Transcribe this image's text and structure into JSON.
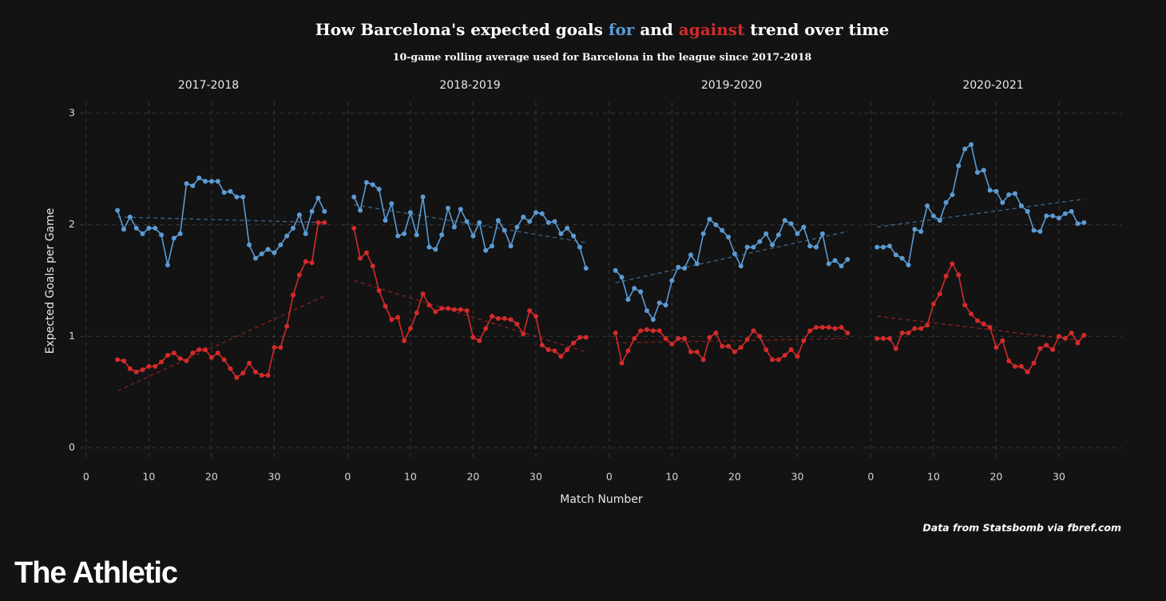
{
  "title_parts": [
    "How Barcelona's expected goals",
    "and",
    "trend over time"
  ],
  "series_names": [
    "for",
    "against"
  ],
  "subtitle": "10-game rolling average used for Barcelona in the league since 2017-2018",
  "ylabel": "Expected Goals per Game",
  "xlabel": "Match Number",
  "source": "Data from Statsbomb via fbref.com",
  "brand": "The Athletic",
  "chart_data": [
    {
      "type": "line",
      "title": "2017-2018",
      "xlim": [
        -1,
        40
      ],
      "ylim": [
        -0.1,
        3.1
      ],
      "xticks": [
        0,
        10,
        20,
        30
      ],
      "yticks": [
        0,
        1,
        2,
        3
      ],
      "grid": true,
      "x": [
        5,
        6,
        7,
        8,
        9,
        10,
        11,
        12,
        13,
        14,
        15,
        16,
        17,
        18,
        19,
        20,
        21,
        22,
        23,
        24,
        25,
        26,
        27,
        28,
        29,
        30,
        31,
        32,
        33,
        34,
        35,
        36,
        37,
        38
      ],
      "series": [
        {
          "color": "#5b9bd5",
          "values": [
            2.13,
            1.96,
            2.07,
            1.97,
            1.92,
            1.97,
            1.97,
            1.91,
            1.64,
            1.88,
            1.92,
            2.37,
            2.35,
            2.42,
            2.39,
            2.39,
            2.39,
            2.29,
            2.3,
            2.25,
            2.25,
            1.82,
            1.7,
            1.74,
            1.78,
            1.75,
            1.82,
            1.9,
            1.97,
            2.09,
            1.92,
            2.12,
            2.24,
            2.12
          ],
          "trend": {
            "x": [
              5,
              38
            ],
            "values": [
              2.07,
              2.02
            ]
          }
        },
        {
          "color": "#d42a2a",
          "values": [
            0.79,
            0.78,
            0.71,
            0.68,
            0.7,
            0.73,
            0.73,
            0.77,
            0.83,
            0.85,
            0.8,
            0.78,
            0.85,
            0.88,
            0.88,
            0.81,
            0.85,
            0.79,
            0.71,
            0.63,
            0.67,
            0.76,
            0.68,
            0.65,
            0.65,
            0.9,
            0.9,
            1.09,
            1.37,
            1.55,
            1.67,
            1.66,
            2.02,
            2.02
          ],
          "trend": {
            "x": [
              5,
              38
            ],
            "values": [
              0.51,
              1.36
            ]
          }
        }
      ]
    },
    {
      "type": "line",
      "title": "2018-2019",
      "xlim": [
        -1,
        40
      ],
      "ylim": [
        -0.1,
        3.1
      ],
      "xticks": [
        0,
        10,
        20,
        30
      ],
      "yticks": [
        0,
        1,
        2,
        3
      ],
      "grid": true,
      "x": [
        1,
        2,
        3,
        4,
        5,
        6,
        7,
        8,
        9,
        10,
        11,
        12,
        13,
        14,
        15,
        16,
        17,
        18,
        19,
        20,
        21,
        22,
        23,
        24,
        25,
        26,
        27,
        28,
        29,
        30,
        31,
        32,
        33,
        34,
        35,
        36,
        37,
        38
      ],
      "series": [
        {
          "color": "#5b9bd5",
          "values": [
            2.25,
            2.13,
            2.38,
            2.36,
            2.32,
            2.04,
            2.19,
            1.9,
            1.92,
            2.11,
            1.91,
            2.25,
            1.8,
            1.78,
            1.91,
            2.15,
            1.98,
            2.14,
            2.03,
            1.9,
            2.02,
            1.77,
            1.81,
            2.04,
            1.95,
            1.81,
            1.98,
            2.07,
            2.03,
            2.11,
            2.1,
            2.02,
            2.03,
            1.92,
            1.97,
            1.9,
            1.8,
            1.61
          ],
          "trend": {
            "x": [
              1,
              38
            ],
            "values": [
              2.18,
              1.84
            ]
          }
        },
        {
          "color": "#d42a2a",
          "values": [
            1.97,
            1.7,
            1.75,
            1.63,
            1.41,
            1.27,
            1.15,
            1.17,
            0.96,
            1.07,
            1.21,
            1.38,
            1.28,
            1.22,
            1.25,
            1.25,
            1.24,
            1.24,
            1.23,
            0.99,
            0.96,
            1.07,
            1.18,
            1.16,
            1.16,
            1.15,
            1.11,
            1.02,
            1.23,
            1.18,
            0.92,
            0.88,
            0.87,
            0.82,
            0.88,
            0.94,
            0.99,
            0.99
          ],
          "trend": {
            "x": [
              1,
              38
            ],
            "values": [
              1.5,
              0.86
            ]
          }
        }
      ]
    },
    {
      "type": "line",
      "title": "2019-2020",
      "xlim": [
        -1,
        40
      ],
      "ylim": [
        -0.1,
        3.1
      ],
      "xticks": [
        0,
        10,
        20,
        30
      ],
      "yticks": [
        0,
        1,
        2,
        3
      ],
      "grid": true,
      "x": [
        1,
        2,
        3,
        4,
        5,
        6,
        7,
        8,
        9,
        10,
        11,
        12,
        13,
        14,
        15,
        16,
        17,
        18,
        19,
        20,
        21,
        22,
        23,
        24,
        25,
        26,
        27,
        28,
        29,
        30,
        31,
        32,
        33,
        34,
        35,
        36,
        37,
        38
      ],
      "series": [
        {
          "color": "#5b9bd5",
          "values": [
            1.59,
            1.53,
            1.33,
            1.43,
            1.4,
            1.23,
            1.15,
            1.3,
            1.28,
            1.5,
            1.62,
            1.61,
            1.73,
            1.65,
            1.92,
            2.05,
            2.0,
            1.95,
            1.89,
            1.74,
            1.63,
            1.8,
            1.8,
            1.85,
            1.92,
            1.82,
            1.91,
            2.04,
            2.01,
            1.92,
            1.98,
            1.81,
            1.8,
            1.92,
            1.65,
            1.68,
            1.63,
            1.69
          ],
          "trend": {
            "x": [
              1,
              38
            ],
            "values": [
              1.48,
              1.94
            ]
          }
        },
        {
          "color": "#d42a2a",
          "values": [
            1.03,
            0.76,
            0.87,
            0.98,
            1.05,
            1.06,
            1.05,
            1.05,
            0.98,
            0.93,
            0.98,
            0.98,
            0.86,
            0.86,
            0.79,
            0.99,
            1.03,
            0.91,
            0.91,
            0.86,
            0.9,
            0.97,
            1.05,
            1.0,
            0.88,
            0.79,
            0.79,
            0.83,
            0.88,
            0.82,
            0.96,
            1.05,
            1.08,
            1.08,
            1.08,
            1.07,
            1.08,
            1.03
          ],
          "trend": {
            "x": [
              1,
              38
            ],
            "values": [
              0.94,
              0.98
            ]
          }
        }
      ]
    },
    {
      "type": "line",
      "title": "2020-2021",
      "xlim": [
        -1,
        40
      ],
      "ylim": [
        -0.1,
        3.1
      ],
      "xticks": [
        0,
        10,
        20,
        30
      ],
      "yticks": [
        0,
        1,
        2,
        3
      ],
      "grid": true,
      "x": [
        1,
        2,
        3,
        4,
        5,
        6,
        7,
        8,
        9,
        10,
        11,
        12,
        13,
        14,
        15,
        16,
        17,
        18,
        19,
        20,
        21,
        22,
        23,
        24,
        25,
        26,
        27,
        28,
        29,
        30,
        31,
        32,
        33,
        34
      ],
      "series": [
        {
          "color": "#5b9bd5",
          "values": [
            1.8,
            1.8,
            1.81,
            1.73,
            1.7,
            1.64,
            1.96,
            1.94,
            2.17,
            2.08,
            2.04,
            2.2,
            2.27,
            2.53,
            2.68,
            2.72,
            2.47,
            2.49,
            2.31,
            2.3,
            2.2,
            2.27,
            2.28,
            2.17,
            2.12,
            1.95,
            1.94,
            2.08,
            2.08,
            2.06,
            2.1,
            2.12,
            2.01,
            2.02
          ],
          "trend": {
            "x": [
              1,
              34
            ],
            "values": [
              1.98,
              2.23
            ]
          }
        },
        {
          "color": "#d42a2a",
          "values": [
            0.98,
            0.98,
            0.98,
            0.89,
            1.03,
            1.03,
            1.07,
            1.07,
            1.1,
            1.29,
            1.38,
            1.54,
            1.65,
            1.55,
            1.28,
            1.2,
            1.14,
            1.11,
            1.08,
            0.9,
            0.96,
            0.78,
            0.73,
            0.73,
            0.68,
            0.76,
            0.89,
            0.92,
            0.88,
            1.0,
            0.98,
            1.03,
            0.94,
            1.01
          ],
          "trend": {
            "x": [
              1,
              34
            ],
            "values": [
              1.18,
              0.96
            ]
          }
        }
      ]
    }
  ]
}
